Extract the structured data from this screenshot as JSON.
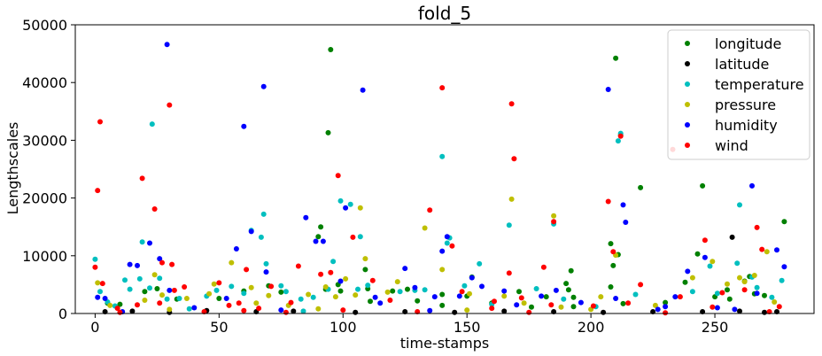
{
  "chart_data": {
    "type": "scatter",
    "title": "fold_5",
    "xlabel": "time-stamps",
    "ylabel": "Lengthscales",
    "xlim": [
      -8,
      290
    ],
    "ylim": [
      0,
      50000
    ],
    "xticks": [
      0,
      50,
      100,
      150,
      200,
      250
    ],
    "yticks": [
      0,
      10000,
      20000,
      30000,
      40000,
      50000
    ],
    "xtick_labels": [
      "0",
      "50",
      "100",
      "150",
      "200",
      "250"
    ],
    "ytick_labels": [
      "0",
      "10000",
      "20000",
      "30000",
      "40000",
      "50000"
    ],
    "grid": false,
    "legend_position": "top-right",
    "series": [
      {
        "name": "longitude",
        "color": "#008000",
        "points": [
          [
            94,
            31300
          ],
          [
            95,
            45700
          ],
          [
            98,
            5000
          ],
          [
            99,
            3900
          ],
          [
            90,
            13300
          ],
          [
            91,
            15000
          ],
          [
            93,
            4200
          ],
          [
            109,
            7600
          ],
          [
            110,
            4300
          ],
          [
            111,
            2100
          ],
          [
            70,
            4800
          ],
          [
            75,
            3700
          ],
          [
            190,
            5200
          ],
          [
            191,
            4100
          ],
          [
            192,
            7400
          ],
          [
            193,
            2800
          ],
          [
            193,
            1200
          ],
          [
            208,
            4600
          ],
          [
            208,
            12100
          ],
          [
            209,
            8300
          ],
          [
            210,
            44200
          ],
          [
            211,
            10200
          ],
          [
            212,
            30900
          ],
          [
            213,
            1700
          ],
          [
            220,
            21800
          ],
          [
            238,
            5400
          ],
          [
            243,
            10300
          ],
          [
            245,
            22100
          ],
          [
            255,
            4100
          ],
          [
            256,
            2500
          ],
          [
            262,
            5600
          ],
          [
            264,
            6400
          ],
          [
            266,
            3400
          ],
          [
            270,
            3100
          ],
          [
            278,
            15900
          ],
          [
            150,
            3000
          ],
          [
            152,
            6300
          ],
          [
            120,
            3900
          ],
          [
            126,
            4200
          ],
          [
            130,
            2200
          ],
          [
            140,
            3300
          ],
          [
            140,
            1400
          ],
          [
            60,
            3900
          ],
          [
            50,
            2600
          ],
          [
            20,
            3800
          ],
          [
            25,
            4300
          ],
          [
            33,
            2500
          ],
          [
            10,
            1600
          ],
          [
            5,
            1800
          ],
          [
            160,
            1800
          ],
          [
            171,
            3800
          ],
          [
            176,
            1100
          ],
          [
            182,
            2900
          ],
          [
            230,
            1900
          ],
          [
            250,
            2900
          ]
        ]
      },
      {
        "name": "latitude",
        "color": "#000000",
        "points": [
          [
            257,
            13200
          ],
          [
            4,
            300
          ],
          [
            15,
            400
          ],
          [
            30,
            200
          ],
          [
            45,
            500
          ],
          [
            65,
            300
          ],
          [
            80,
            400
          ],
          [
            105,
            200
          ],
          [
            125,
            300
          ],
          [
            145,
            200
          ],
          [
            165,
            400
          ],
          [
            185,
            300
          ],
          [
            205,
            200
          ],
          [
            225,
            300
          ],
          [
            245,
            300
          ],
          [
            260,
            400
          ],
          [
            270,
            200
          ],
          [
            275,
            300
          ]
        ]
      },
      {
        "name": "temperature",
        "color": "#00bfbf",
        "points": [
          [
            0,
            9400
          ],
          [
            2,
            3800
          ],
          [
            5,
            2000
          ],
          [
            8,
            1300
          ],
          [
            12,
            5800
          ],
          [
            14,
            4200
          ],
          [
            18,
            6000
          ],
          [
            19,
            12400
          ],
          [
            22,
            4400
          ],
          [
            23,
            32800
          ],
          [
            26,
            6100
          ],
          [
            29,
            2500
          ],
          [
            34,
            2600
          ],
          [
            38,
            800
          ],
          [
            45,
            3000
          ],
          [
            49,
            4000
          ],
          [
            55,
            4700
          ],
          [
            60,
            3500
          ],
          [
            63,
            14400
          ],
          [
            67,
            13200
          ],
          [
            68,
            17200
          ],
          [
            69,
            8600
          ],
          [
            75,
            4800
          ],
          [
            77,
            3800
          ],
          [
            83,
            2500
          ],
          [
            88,
            2800
          ],
          [
            94,
            4200
          ],
          [
            96,
            9000
          ],
          [
            99,
            19500
          ],
          [
            103,
            18900
          ],
          [
            106,
            4200
          ],
          [
            107,
            13300
          ],
          [
            110,
            4900
          ],
          [
            123,
            3800
          ],
          [
            129,
            4000
          ],
          [
            133,
            4100
          ],
          [
            140,
            27200
          ],
          [
            142,
            12200
          ],
          [
            143,
            13100
          ],
          [
            149,
            4800
          ],
          [
            155,
            8600
          ],
          [
            167,
            15300
          ],
          [
            178,
            4300
          ],
          [
            185,
            15500
          ],
          [
            189,
            2500
          ],
          [
            211,
            29900
          ],
          [
            212,
            31200
          ],
          [
            218,
            3300
          ],
          [
            241,
            3800
          ],
          [
            248,
            8200
          ],
          [
            251,
            3500
          ],
          [
            259,
            8700
          ],
          [
            260,
            18800
          ],
          [
            265,
            6300
          ],
          [
            267,
            4500
          ],
          [
            273,
            2800
          ],
          [
            277,
            5700
          ],
          [
            202,
            1200
          ],
          [
            160,
            1600
          ],
          [
            84,
            400
          ]
        ]
      },
      {
        "name": "pressure",
        "color": "#bfbf00",
        "points": [
          [
            1,
            5300
          ],
          [
            6,
            1400
          ],
          [
            20,
            2300
          ],
          [
            24,
            6700
          ],
          [
            27,
            3200
          ],
          [
            37,
            2600
          ],
          [
            46,
            3400
          ],
          [
            48,
            5100
          ],
          [
            55,
            8800
          ],
          [
            63,
            4500
          ],
          [
            65,
            1800
          ],
          [
            70,
            3100
          ],
          [
            78,
            1400
          ],
          [
            86,
            3300
          ],
          [
            93,
            4600
          ],
          [
            97,
            2900
          ],
          [
            101,
            6000
          ],
          [
            105,
            3200
          ],
          [
            107,
            18300
          ],
          [
            109,
            9500
          ],
          [
            118,
            3700
          ],
          [
            122,
            5500
          ],
          [
            133,
            14800
          ],
          [
            140,
            7600
          ],
          [
            151,
            3400
          ],
          [
            165,
            3000
          ],
          [
            168,
            19800
          ],
          [
            173,
            1800
          ],
          [
            185,
            16900
          ],
          [
            188,
            1100
          ],
          [
            204,
            2900
          ],
          [
            210,
            10100
          ],
          [
            226,
            1400
          ],
          [
            241,
            6200
          ],
          [
            249,
            9000
          ],
          [
            255,
            5100
          ],
          [
            260,
            6200
          ],
          [
            262,
            5500
          ],
          [
            266,
            6600
          ],
          [
            271,
            10700
          ],
          [
            274,
            2000
          ],
          [
            30,
            700
          ],
          [
            90,
            800
          ],
          [
            150,
            600
          ],
          [
            200,
            700
          ]
        ]
      },
      {
        "name": "humidity",
        "color": "#0000ff",
        "points": [
          [
            1,
            2800
          ],
          [
            4,
            2600
          ],
          [
            14,
            8500
          ],
          [
            17,
            8300
          ],
          [
            22,
            12200
          ],
          [
            26,
            9500
          ],
          [
            29,
            46600
          ],
          [
            30,
            4000
          ],
          [
            53,
            2600
          ],
          [
            57,
            11200
          ],
          [
            60,
            32400
          ],
          [
            63,
            14200
          ],
          [
            68,
            39300
          ],
          [
            69,
            7200
          ],
          [
            85,
            16600
          ],
          [
            89,
            12500
          ],
          [
            92,
            12500
          ],
          [
            99,
            5600
          ],
          [
            101,
            18300
          ],
          [
            108,
            38700
          ],
          [
            113,
            2800
          ],
          [
            125,
            7800
          ],
          [
            129,
            4500
          ],
          [
            137,
            2900
          ],
          [
            140,
            10800
          ],
          [
            142,
            13300
          ],
          [
            147,
            3000
          ],
          [
            152,
            6200
          ],
          [
            156,
            4700
          ],
          [
            165,
            3900
          ],
          [
            180,
            3000
          ],
          [
            186,
            4000
          ],
          [
            196,
            1900
          ],
          [
            207,
            38800
          ],
          [
            210,
            2600
          ],
          [
            213,
            18800
          ],
          [
            214,
            15800
          ],
          [
            227,
            700
          ],
          [
            234,
            2900
          ],
          [
            239,
            7300
          ],
          [
            246,
            9700
          ],
          [
            251,
            1000
          ],
          [
            265,
            22100
          ],
          [
            267,
            3500
          ],
          [
            275,
            11000
          ],
          [
            278,
            8100
          ],
          [
            11,
            300
          ],
          [
            40,
            1000
          ],
          [
            75,
            600
          ],
          [
            115,
            1800
          ],
          [
            135,
            500
          ],
          [
            170,
            1500
          ],
          [
            230,
            1200
          ],
          [
            258,
            700
          ]
        ]
      },
      {
        "name": "wind",
        "color": "#ff0000",
        "points": [
          [
            0,
            8000
          ],
          [
            1,
            21300
          ],
          [
            2,
            33200
          ],
          [
            3,
            5200
          ],
          [
            9,
            900
          ],
          [
            17,
            1500
          ],
          [
            19,
            23400
          ],
          [
            24,
            18100
          ],
          [
            26,
            1800
          ],
          [
            27,
            8800
          ],
          [
            30,
            36100
          ],
          [
            31,
            8500
          ],
          [
            32,
            4000
          ],
          [
            36,
            4600
          ],
          [
            50,
            5300
          ],
          [
            54,
            1400
          ],
          [
            58,
            1800
          ],
          [
            61,
            7600
          ],
          [
            66,
            900
          ],
          [
            71,
            4700
          ],
          [
            79,
            1900
          ],
          [
            82,
            8200
          ],
          [
            91,
            6800
          ],
          [
            95,
            7100
          ],
          [
            98,
            23900
          ],
          [
            104,
            13200
          ],
          [
            112,
            5700
          ],
          [
            119,
            2300
          ],
          [
            135,
            17900
          ],
          [
            140,
            39100
          ],
          [
            144,
            11700
          ],
          [
            148,
            3800
          ],
          [
            161,
            2100
          ],
          [
            167,
            7000
          ],
          [
            168,
            36300
          ],
          [
            169,
            26800
          ],
          [
            172,
            2700
          ],
          [
            181,
            8000
          ],
          [
            184,
            1500
          ],
          [
            185,
            15900
          ],
          [
            201,
            1300
          ],
          [
            207,
            19400
          ],
          [
            209,
            10700
          ],
          [
            212,
            30700
          ],
          [
            215,
            1800
          ],
          [
            220,
            5000
          ],
          [
            233,
            28400
          ],
          [
            236,
            2900
          ],
          [
            246,
            12700
          ],
          [
            249,
            1100
          ],
          [
            253,
            3600
          ],
          [
            262,
            4100
          ],
          [
            267,
            14900
          ],
          [
            269,
            11100
          ],
          [
            276,
            1200
          ],
          [
            10,
            200
          ],
          [
            44,
            300
          ],
          [
            77,
            200
          ],
          [
            130,
            300
          ],
          [
            175,
            200
          ],
          [
            230,
            100
          ],
          [
            272,
            300
          ],
          [
            160,
            900
          ],
          [
            100,
            600
          ],
          [
            60,
            500
          ]
        ]
      }
    ]
  }
}
